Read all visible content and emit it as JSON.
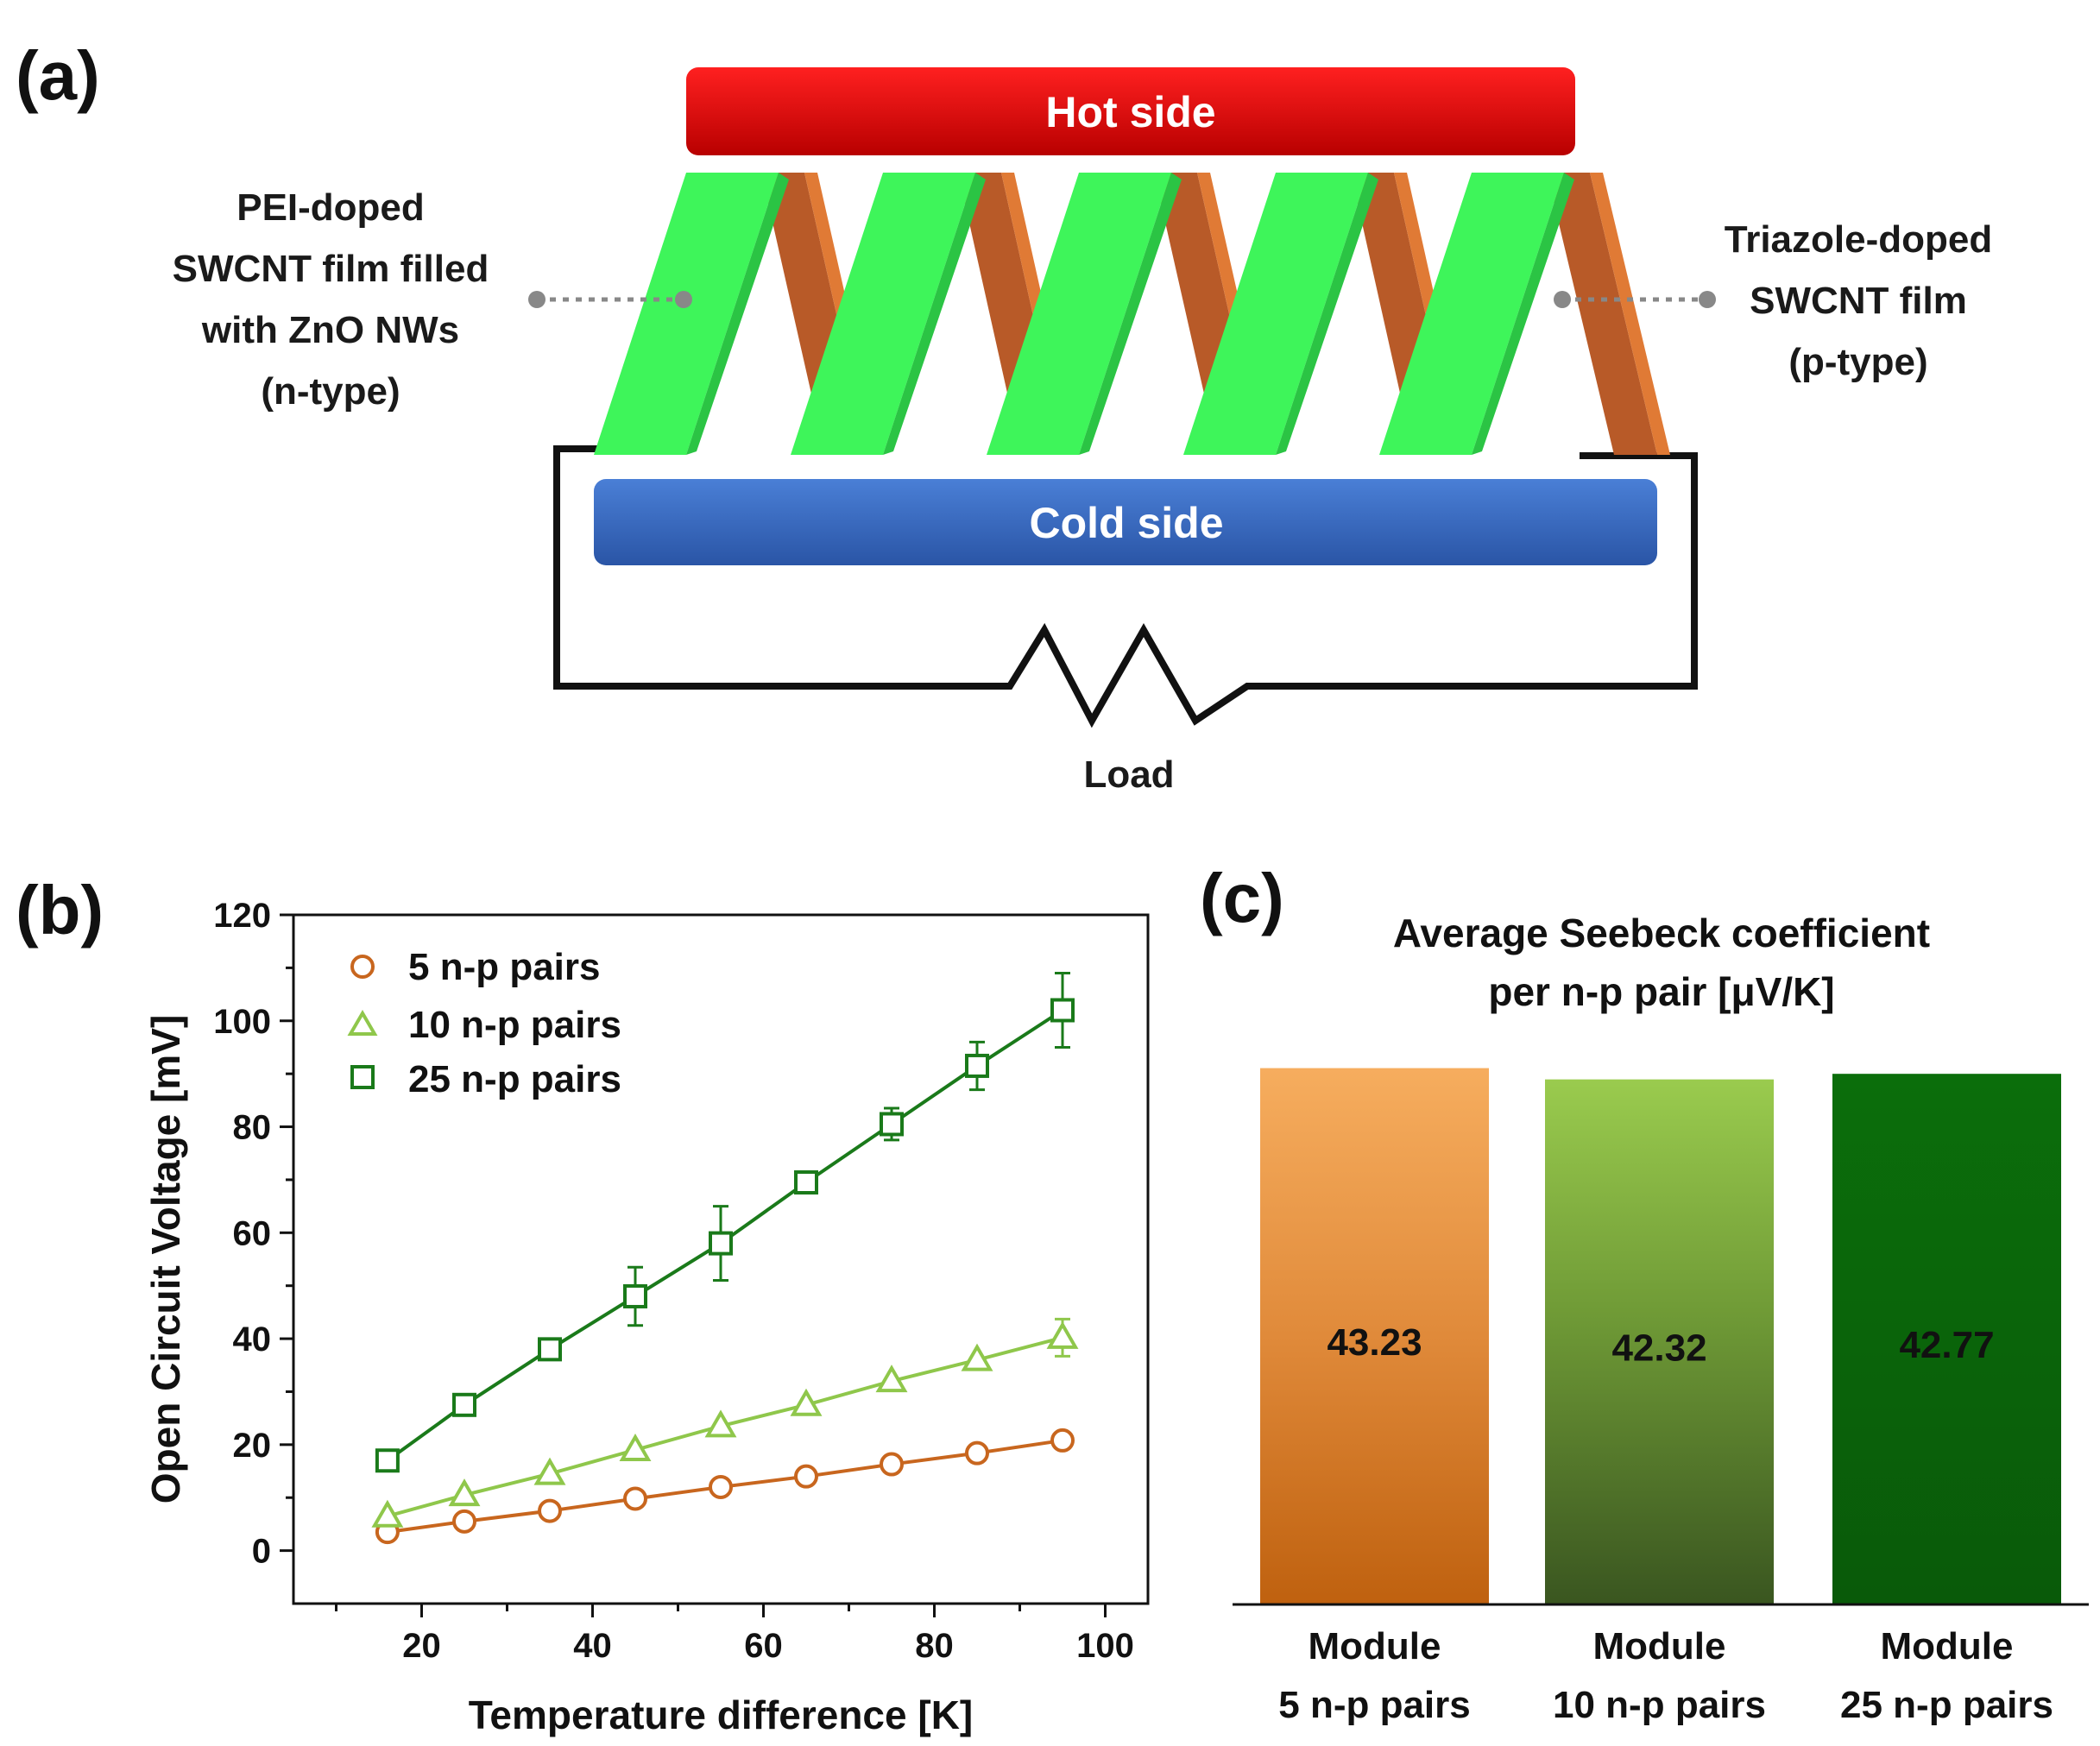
{
  "panel_a": {
    "letter": "(a)",
    "hot_side": "Hot side",
    "cold_side": "Cold side",
    "load": "Load",
    "n_type_label": [
      "PEI-doped",
      "SWCNT film filled",
      "with ZnO NWs",
      "(n-type)"
    ],
    "p_type_label": [
      "Triazole-doped",
      "SWCNT film",
      "(p-type)"
    ],
    "colors": {
      "hot": "#e30000",
      "cold": "#2e5fb3",
      "n_leg": "#3ef55a",
      "p_leg": "#b85a28"
    }
  },
  "panel_b": {
    "letter": "(b)",
    "chart_data": {
      "type": "scatter",
      "xlabel": "Temperature difference [K]",
      "ylabel": "Open Circuit Voltage [mV]",
      "xlim": [
        5,
        105
      ],
      "ylim": [
        -10,
        120
      ],
      "xticks": [
        20,
        40,
        60,
        80,
        100
      ],
      "yticks": [
        0,
        20,
        40,
        60,
        80,
        100,
        120
      ],
      "x": [
        16,
        25,
        35,
        45,
        55,
        65,
        75,
        85,
        95
      ],
      "series": [
        {
          "name": "5 n-p pairs",
          "marker": "circle",
          "color": "#c8661e",
          "values": [
            3.5,
            5.5,
            7.5,
            9.8,
            12.0,
            14.0,
            16.3,
            18.4,
            20.8
          ],
          "errors": [
            0.6,
            0.6,
            0.6,
            0.8,
            0.8,
            0.8,
            0.8,
            0.8,
            1.2
          ]
        },
        {
          "name": "10 n-p pairs",
          "marker": "triangle",
          "color": "#8fc74b",
          "values": [
            6.5,
            10.5,
            14.5,
            19.0,
            23.5,
            27.5,
            32.0,
            36.0,
            40.2
          ],
          "errors": [
            0.6,
            0.6,
            0.8,
            0.8,
            1.0,
            1.0,
            1.0,
            1.0,
            3.5
          ]
        },
        {
          "name": "25 n-p pairs",
          "marker": "square",
          "color": "#1a7a1a",
          "values": [
            17.0,
            27.5,
            38.0,
            48.0,
            58.0,
            69.5,
            80.5,
            91.5,
            102.0
          ],
          "errors": [
            0.8,
            0.8,
            0.8,
            5.5,
            7.0,
            0.8,
            3.0,
            4.5,
            7.0
          ]
        }
      ]
    }
  },
  "panel_c": {
    "letter": "(c)",
    "chart_data": {
      "type": "bar",
      "title": [
        "Average Seebeck coefficient",
        "per n-p pair [μV/K]"
      ],
      "categories": [
        [
          "Module",
          "5 n-p pairs"
        ],
        [
          "Module",
          "10 n-p pairs"
        ],
        [
          "Module",
          "25 n-p pairs"
        ]
      ],
      "values": [
        43.23,
        42.32,
        42.77
      ],
      "value_labels": [
        "43.23",
        "42.32",
        "42.77"
      ],
      "colors": [
        [
          "#f5aa5a",
          "#c0620e"
        ],
        [
          "#94c44a",
          "#3c5a22"
        ],
        [
          "#0a6a0a",
          "#0a5a0a"
        ]
      ]
    }
  }
}
